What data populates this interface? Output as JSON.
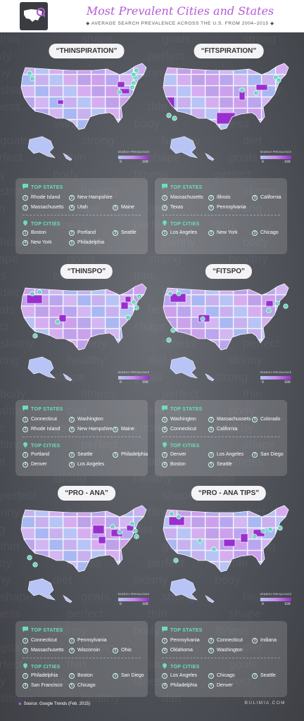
{
  "header": {
    "title": "Most Prevalent Cities and States",
    "subtitle": "AVERAGE SEARCH PREVALENCE ACROSS THE U.S. FROM 2004–2015"
  },
  "legend": {
    "title": "SEARCH PREVALENCE",
    "min": "0",
    "max": "100"
  },
  "colors": {
    "accent": "#b45ad8",
    "heading": "#6be0b6",
    "low": "#b7c4f5",
    "high": "#9a2fd0"
  },
  "panels": [
    {
      "label": "“THINSPIRATION”",
      "states_heading": "TOP STATES",
      "states": [
        "Rhode Island",
        "New Hampshire",
        "Massachusetts",
        "Utah",
        "Maine"
      ],
      "cities_heading": "TOP CITIES",
      "cities": [
        "Boston",
        "Portland",
        "Seattle",
        "New York",
        "Philadelphia"
      ]
    },
    {
      "label": "“FITSPIRATION”",
      "states_heading": "TOP STATES",
      "states": [
        "Massachusetts",
        "Illinois",
        "California",
        "Texas",
        "Pennsylvania"
      ],
      "cities_heading": "TOP CITIES",
      "cities": [
        "Los Angeles",
        "New York",
        "Chicago"
      ]
    },
    {
      "label": "“THINSPO”",
      "states_heading": "TOP STATES",
      "states": [
        "Connecticut",
        "Washington",
        "Rhode Island",
        "New Hampshire",
        "Maine"
      ],
      "cities_heading": "TOP CITIES",
      "cities": [
        "Portland",
        "Seattle",
        "Philadelphia",
        "Denver",
        "Los Angeles"
      ]
    },
    {
      "label": "“FITSPO”",
      "states_heading": "TOP STATES",
      "states": [
        "Washington",
        "Massachussets",
        "Colorado",
        "Connecticut",
        "California"
      ],
      "cities_heading": "TOP CITIES",
      "cities": [
        "Denver",
        "Los Angeles",
        "San Diego",
        "Boston",
        "Seattle"
      ]
    },
    {
      "label": "“PRO - ANA”",
      "states_heading": "TOP STATES",
      "states": [
        "Connecticut",
        "Pennsylvania",
        "Massachusetts",
        "Wisconsin",
        "Ohio"
      ],
      "cities_heading": "TOP CITIES",
      "cities": [
        "Philadelphia",
        "Boston",
        "San Diego",
        "San Francisco",
        "Chicago"
      ]
    },
    {
      "label": "“PRO - ANA TIPS”",
      "states_heading": "TOP STATES",
      "states": [
        "Pennsylvania",
        "Connecticut",
        "Indiana",
        "Oklahoma",
        "Washington"
      ],
      "cities_heading": "TOP CITIES",
      "cities": [
        "Los Angeles",
        "Chicago",
        "Seattle",
        "Philadelphia",
        "Denver"
      ]
    }
  ],
  "footer": {
    "source": "Source: Google Trends (Feb. 2015)",
    "brand": "BULIMIA.COM"
  }
}
